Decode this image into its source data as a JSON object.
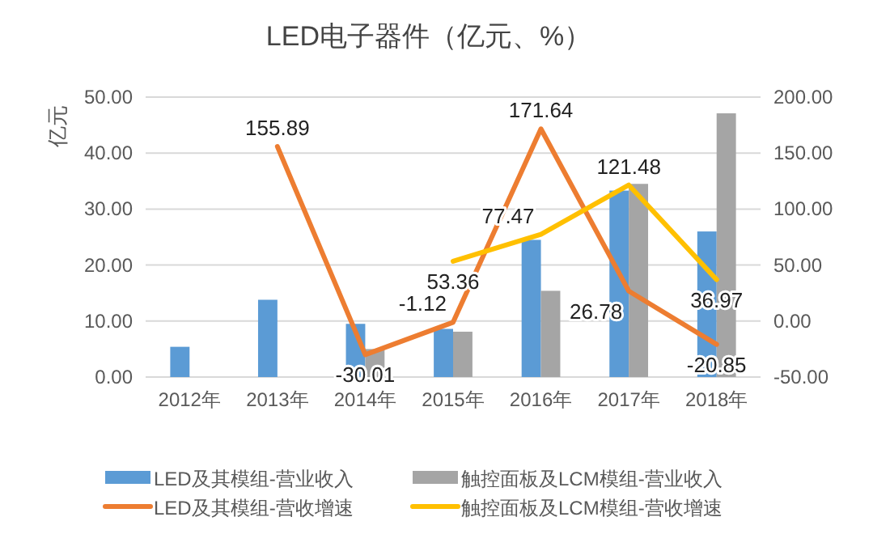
{
  "chart_data": {
    "type": "bar",
    "title": "LED电子器件（亿元、%）",
    "ylabel": "亿元",
    "categories": [
      "2012年",
      "2013年",
      "2014年",
      "2015年",
      "2016年",
      "2017年",
      "2018年"
    ],
    "series": [
      {
        "name": "LED及其模组-营业收入",
        "color": "#5b9bd5",
        "values": [
          5.4,
          13.8,
          9.5,
          8.6,
          24.5,
          33.3,
          26.0
        ]
      },
      {
        "name": "触控面板及LCM模组-营业收入",
        "color": "#a5a5a5",
        "values": [
          null,
          null,
          5.0,
          8.1,
          15.4,
          34.5,
          47.1
        ]
      },
      {
        "name": "LED及其模组-营收增速",
        "type": "line",
        "axis": "y2",
        "color": "#ed7d31",
        "values": [
          null,
          155.89,
          -30.01,
          -1.12,
          171.64,
          26.78,
          -20.85
        ],
        "value_labels": [
          null,
          "155.89",
          "-30.01",
          "-1.12",
          "171.64",
          "26.78",
          "-20.85"
        ]
      },
      {
        "name": "触控面板及LCM模组-营收增速",
        "type": "line",
        "axis": "y2",
        "color": "#ffc000",
        "values": [
          null,
          null,
          null,
          53.36,
          77.47,
          121.48,
          36.97
        ],
        "value_labels": [
          null,
          null,
          null,
          "53.36",
          "77.47",
          "121.48",
          "36.97"
        ]
      }
    ],
    "ylim": [
      0,
      50
    ],
    "yticks": [
      {
        "value": 0,
        "label": "0.00"
      },
      {
        "value": 10,
        "label": "10.00"
      },
      {
        "value": 20,
        "label": "20.00"
      },
      {
        "value": 30,
        "label": "30.00"
      },
      {
        "value": 40,
        "label": "40.00"
      },
      {
        "value": 50,
        "label": "50.00"
      }
    ],
    "y2lim": [
      -50,
      200
    ],
    "y2ticks": [
      {
        "value": -50,
        "label": "-50.00"
      },
      {
        "value": 0,
        "label": "0.00"
      },
      {
        "value": 50,
        "label": "50.00"
      },
      {
        "value": 100,
        "label": "100.00"
      },
      {
        "value": 150,
        "label": "150.00"
      },
      {
        "value": 200,
        "label": "200.00"
      }
    ],
    "grid": "y",
    "legend": "bottom",
    "marker": "none",
    "line_style": "solid"
  }
}
